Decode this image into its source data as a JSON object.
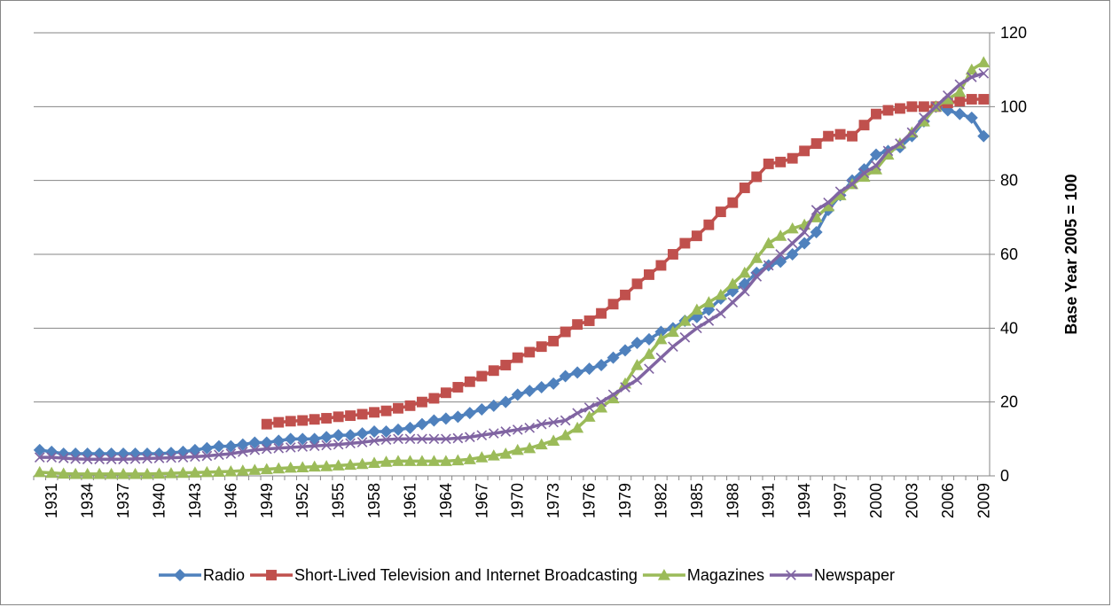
{
  "chart_data": {
    "type": "line",
    "y_axis_label": "Base Year 2005 = 100",
    "categories": [
      null,
      "1931",
      null,
      null,
      "1934",
      null,
      null,
      "1937",
      null,
      null,
      "1940",
      null,
      null,
      "1943",
      null,
      null,
      "1946",
      null,
      null,
      "1949",
      null,
      null,
      "1952",
      null,
      null,
      "1955",
      null,
      null,
      "1958",
      null,
      null,
      "1961",
      null,
      null,
      "1964",
      null,
      null,
      "1967",
      null,
      null,
      "1970",
      null,
      null,
      "1973",
      null,
      null,
      "1976",
      null,
      null,
      "1979",
      null,
      null,
      "1982",
      null,
      null,
      "1985",
      null,
      null,
      "1988",
      null,
      null,
      "1991",
      null,
      null,
      "1994",
      null,
      null,
      "1997",
      null,
      null,
      "2000",
      null,
      null,
      "2003",
      null,
      null,
      "2006",
      null,
      null,
      "2009"
    ],
    "ylim": [
      0,
      120
    ],
    "yticks": [
      0,
      20,
      40,
      60,
      80,
      100,
      120
    ],
    "grid": true,
    "legend": "bottom",
    "series": [
      {
        "name": "Radio",
        "color": "#4f81bd",
        "marker": "diamond",
        "values": [
          7,
          6.5,
          6,
          6,
          6,
          6,
          6,
          6,
          6,
          6,
          6,
          6.2,
          6.5,
          7,
          7.5,
          8,
          8,
          8.5,
          9,
          9,
          9.5,
          10,
          10,
          10,
          10.5,
          11,
          11,
          11.5,
          12,
          12,
          12.5,
          13,
          14,
          15,
          15.5,
          16,
          17,
          18,
          19,
          20,
          22,
          23,
          24,
          25,
          27,
          28,
          29,
          30,
          32,
          34,
          36,
          37,
          39,
          40,
          42,
          43,
          45,
          48,
          50,
          52,
          55,
          57,
          58,
          60,
          63,
          66,
          72,
          76,
          80,
          83,
          87,
          88,
          89,
          92,
          96,
          100,
          99,
          98,
          97,
          92
        ]
      },
      {
        "name": "Short-Lived Television and Internet Broadcasting",
        "color": "#c0504d",
        "marker": "square",
        "values": [
          null,
          null,
          null,
          null,
          null,
          null,
          null,
          null,
          null,
          null,
          null,
          null,
          null,
          null,
          null,
          null,
          null,
          null,
          null,
          14,
          14.5,
          14.8,
          15,
          15.3,
          15.6,
          16,
          16.3,
          16.7,
          17.2,
          17.6,
          18.3,
          19,
          20,
          21,
          22.5,
          24,
          25.5,
          27,
          28.5,
          30,
          32,
          33.5,
          35,
          36.5,
          39,
          41,
          42,
          44,
          46.5,
          49,
          52,
          54.5,
          57,
          60,
          63,
          65,
          68,
          71.5,
          74,
          78,
          81,
          84.5,
          85,
          86,
          88,
          90,
          92,
          92.5,
          92,
          95,
          98,
          99,
          99.5,
          100,
          100,
          100,
          101,
          101.5,
          102,
          102
        ]
      },
      {
        "name": "Magazines",
        "color": "#9bbb59",
        "marker": "triangle",
        "values": [
          1,
          0.8,
          0.6,
          0.5,
          0.5,
          0.5,
          0.5,
          0.5,
          0.5,
          0.5,
          0.6,
          0.7,
          0.8,
          0.9,
          1,
          1.1,
          1.2,
          1.4,
          1.6,
          1.8,
          2,
          2.2,
          2.3,
          2.5,
          2.6,
          2.8,
          3,
          3.2,
          3.5,
          3.8,
          4,
          4,
          4,
          4,
          4,
          4.2,
          4.5,
          5,
          5.5,
          6,
          7,
          7.5,
          8.5,
          9.5,
          11,
          13,
          16,
          18.5,
          21,
          25,
          30,
          33,
          37,
          39,
          42,
          45,
          47,
          49,
          52,
          55,
          59,
          63,
          65,
          67,
          68,
          70,
          73,
          76,
          79,
          81,
          83,
          87,
          90,
          93,
          96,
          100,
          102,
          104,
          110,
          112
        ]
      },
      {
        "name": "Newspaper",
        "color": "#8064a2",
        "marker": "x",
        "values": [
          5,
          5,
          4.8,
          4.6,
          4.5,
          4.5,
          4.5,
          4.5,
          4.6,
          4.7,
          4.8,
          4.9,
          5,
          5.2,
          5.4,
          5.7,
          6,
          6.5,
          7,
          7.3,
          7.5,
          7.7,
          7.9,
          8.1,
          8.3,
          8.5,
          8.8,
          9.1,
          9.5,
          9.8,
          10,
          10,
          10,
          10,
          10,
          10.2,
          10.5,
          11,
          11.5,
          12,
          12.5,
          13,
          14,
          14.5,
          15,
          17,
          18.5,
          20,
          22,
          24,
          26,
          29,
          32,
          35,
          37.5,
          40,
          42,
          44,
          47,
          50,
          54,
          57,
          60,
          63,
          66,
          72,
          74,
          77,
          79,
          82,
          84,
          88,
          90,
          93,
          97,
          100,
          103,
          106,
          108,
          109
        ]
      }
    ]
  }
}
